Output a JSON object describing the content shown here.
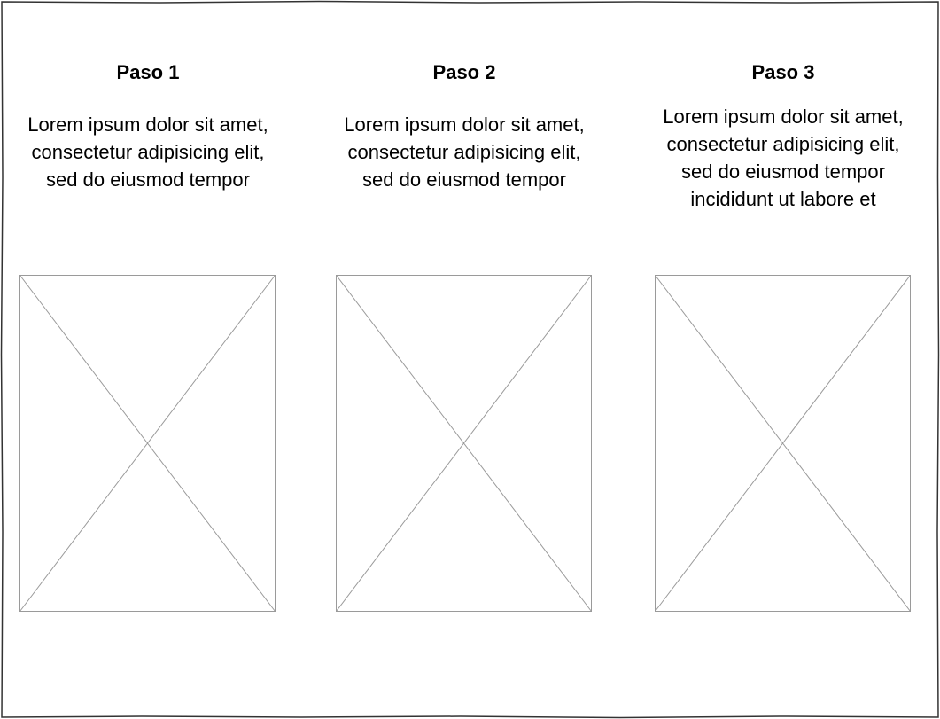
{
  "steps": [
    {
      "title": "Paso 1",
      "text": "Lorem ipsum dolor sit amet, consectetur adipisicing elit, sed do eiusmod tempor"
    },
    {
      "title": "Paso 2",
      "text": "Lorem ipsum dolor sit amet, consectetur adipisicing elit, sed do eiusmod tempor"
    },
    {
      "title": "Paso 3",
      "text": "Lorem ipsum dolor sit amet, consectetur adipisicing elit, sed do eiusmod tempor incididunt ut labore et"
    }
  ]
}
